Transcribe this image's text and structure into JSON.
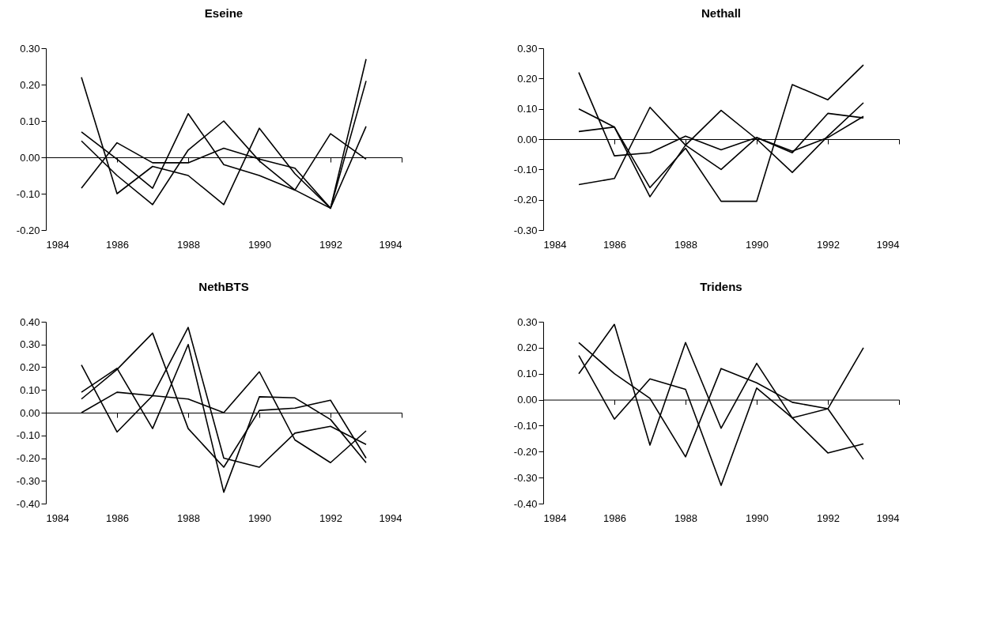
{
  "chart_data": [
    {
      "type": "line",
      "title": "Eseine",
      "x": [
        1985,
        1986,
        1987,
        1988,
        1989,
        1990,
        1991,
        1992,
        1993
      ],
      "xlim": [
        1984,
        1994
      ],
      "xticks": [
        1984,
        1986,
        1988,
        1990,
        1992,
        1994
      ],
      "ylim": [
        -0.2,
        0.3
      ],
      "yticks": [
        {
          "value": -0.2,
          "label": "-0.20"
        },
        {
          "value": -0.1,
          "label": "-0.10"
        },
        {
          "value": 0,
          "label": "0.00"
        },
        {
          "value": 0.1,
          "label": "0.10"
        },
        {
          "value": 0.2,
          "label": "0.20"
        },
        {
          "value": 0.3,
          "label": "0.30"
        }
      ],
      "legend": false,
      "series": [
        {
          "color": "#000000",
          "values": [
            0.22,
            -0.1,
            -0.025,
            -0.05,
            -0.13,
            0.08,
            -0.045,
            -0.14,
            0.27
          ]
        },
        {
          "color": "#000000",
          "values": [
            0.07,
            -0.005,
            -0.085,
            0.12,
            -0.02,
            -0.05,
            -0.09,
            -0.14,
            0.21
          ]
        },
        {
          "color": "#000000",
          "values": [
            0.045,
            -0.05,
            -0.13,
            0.02,
            0.1,
            -0.01,
            -0.09,
            0.065,
            -0.005
          ]
        },
        {
          "color": "#000000",
          "values": [
            -0.085,
            0.04,
            -0.015,
            -0.015,
            0.025,
            -0.005,
            -0.03,
            -0.14,
            0.085
          ]
        }
      ]
    },
    {
      "type": "line",
      "title": "Nethall",
      "x": [
        1985,
        1986,
        1987,
        1988,
        1989,
        1990,
        1991,
        1992,
        1993
      ],
      "xlim": [
        1984,
        1994
      ],
      "xticks": [
        1984,
        1986,
        1988,
        1990,
        1992,
        1994
      ],
      "ylim": [
        -0.3,
        0.3
      ],
      "yticks": [
        {
          "value": -0.3,
          "label": "-0.30"
        },
        {
          "value": -0.2,
          "label": "-0.20"
        },
        {
          "value": -0.1,
          "label": "-0.10"
        },
        {
          "value": 0,
          "label": "0.00"
        },
        {
          "value": 0.1,
          "label": "0.10"
        },
        {
          "value": 0.2,
          "label": "0.20"
        },
        {
          "value": 0.3,
          "label": "0.30"
        }
      ],
      "legend": false,
      "series": [
        {
          "color": "#000000",
          "values": [
            0.22,
            -0.055,
            -0.045,
            0.01,
            -0.035,
            0.005,
            -0.04,
            0.005,
            0.075
          ]
        },
        {
          "color": "#000000",
          "values": [
            0.1,
            0.04,
            -0.19,
            -0.02,
            0.095,
            0.0,
            -0.11,
            0.01,
            0.12
          ]
        },
        {
          "color": "#000000",
          "values": [
            0.025,
            0.04,
            -0.16,
            -0.03,
            -0.205,
            -0.205,
            0.18,
            0.13,
            0.245
          ]
        },
        {
          "color": "#000000",
          "values": [
            -0.15,
            -0.13,
            0.105,
            -0.02,
            -0.1,
            0.005,
            -0.045,
            0.085,
            0.07
          ]
        }
      ]
    },
    {
      "type": "line",
      "title": "NethBTS",
      "x": [
        1985,
        1986,
        1987,
        1988,
        1989,
        1990,
        1991,
        1992,
        1993
      ],
      "xlim": [
        1984,
        1994
      ],
      "xticks": [
        1984,
        1986,
        1988,
        1990,
        1992,
        1994
      ],
      "ylim": [
        -0.4,
        0.4
      ],
      "yticks": [
        {
          "value": -0.4,
          "label": "-0.40"
        },
        {
          "value": -0.3,
          "label": "-0.30"
        },
        {
          "value": -0.2,
          "label": "-0.20"
        },
        {
          "value": -0.1,
          "label": "-0.10"
        },
        {
          "value": 0,
          "label": "0.00"
        },
        {
          "value": 0.1,
          "label": "0.10"
        },
        {
          "value": 0.2,
          "label": "0.20"
        },
        {
          "value": 0.3,
          "label": "0.30"
        },
        {
          "value": 0.4,
          "label": "0.40"
        }
      ],
      "legend": false,
      "series": [
        {
          "color": "#000000",
          "values": [
            0.21,
            -0.085,
            0.075,
            0.06,
            0.0,
            0.18,
            -0.12,
            -0.22,
            -0.08
          ]
        },
        {
          "color": "#000000",
          "values": [
            0.09,
            0.195,
            -0.07,
            0.3,
            -0.35,
            0.07,
            0.065,
            -0.03,
            -0.22
          ]
        },
        {
          "color": "#000000",
          "values": [
            0.06,
            0.19,
            0.35,
            -0.07,
            -0.24,
            0.01,
            0.02,
            0.055,
            -0.2
          ]
        },
        {
          "color": "#000000",
          "values": [
            0.0,
            0.09,
            0.075,
            0.375,
            -0.2,
            -0.24,
            -0.09,
            -0.06,
            -0.14
          ]
        }
      ]
    },
    {
      "type": "line",
      "title": "Tridens",
      "x": [
        1985,
        1986,
        1987,
        1988,
        1989,
        1990,
        1991,
        1992,
        1993
      ],
      "xlim": [
        1984,
        1994
      ],
      "xticks": [
        1984,
        1986,
        1988,
        1990,
        1992,
        1994
      ],
      "ylim": [
        -0.4,
        0.3
      ],
      "yticks": [
        {
          "value": -0.4,
          "label": "-0.40"
        },
        {
          "value": -0.3,
          "label": "-0.30"
        },
        {
          "value": -0.2,
          "label": "-0.20"
        },
        {
          "value": -0.1,
          "label": "-0.10"
        },
        {
          "value": 0,
          "label": "0.00"
        },
        {
          "value": 0.1,
          "label": "0.10"
        },
        {
          "value": 0.2,
          "label": "0.20"
        },
        {
          "value": 0.3,
          "label": "0.30"
        }
      ],
      "legend": false,
      "series": [
        {
          "color": "#000000",
          "values": [
            0.22,
            0.1,
            0.005,
            -0.22,
            0.12,
            0.065,
            -0.01,
            -0.035,
            -0.23
          ]
        },
        {
          "color": "#000000",
          "values": [
            0.1,
            0.29,
            -0.175,
            0.22,
            -0.11,
            0.14,
            -0.07,
            -0.035,
            0.2
          ]
        },
        {
          "color": "#000000",
          "values": [
            0.17,
            -0.075,
            0.08,
            0.04,
            -0.33,
            0.045,
            -0.07,
            -0.205,
            -0.17
          ]
        }
      ]
    }
  ]
}
